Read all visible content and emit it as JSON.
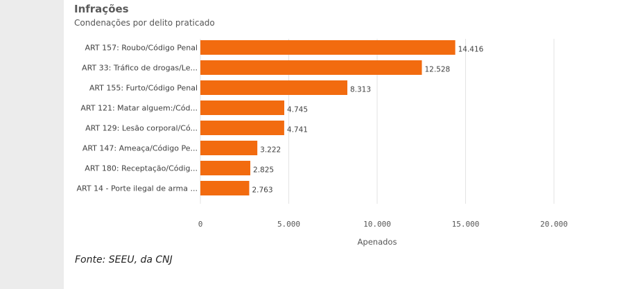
{
  "chart_data": {
    "type": "bar",
    "orientation": "horizontal",
    "title": "Infrações",
    "subtitle": "Condenações por delito praticado",
    "xlabel": "Apenados",
    "categories": [
      "ART 157: Roubo/Código Penal",
      "ART 33: Tráfico de drogas/Le...",
      "ART 155: Furto/Código Penal",
      "ART 121: Matar alguem:/Cód...",
      "ART 129: Lesão corporal/Có...",
      "ART 147: Ameaça/Código Pe...",
      "ART 180: Receptação/Códig...",
      "ART 14 - Porte ilegal de arma ..."
    ],
    "values": [
      14416,
      12528,
      8313,
      4745,
      4741,
      3222,
      2825,
      2763
    ],
    "value_labels": [
      "14.416",
      "12.528",
      "8.313",
      "4.745",
      "4.741",
      "3.222",
      "2.825",
      "2.763"
    ],
    "xlim": [
      0,
      20000
    ],
    "xticks": [
      0,
      5000,
      10000,
      15000,
      20000
    ],
    "xtick_labels": [
      "0",
      "5.000",
      "10.000",
      "15.000",
      "20.000"
    ],
    "grid": true,
    "bar_color": "#f26b0f"
  },
  "footer": {
    "source": "Fonte: SEEU, da CNJ"
  }
}
